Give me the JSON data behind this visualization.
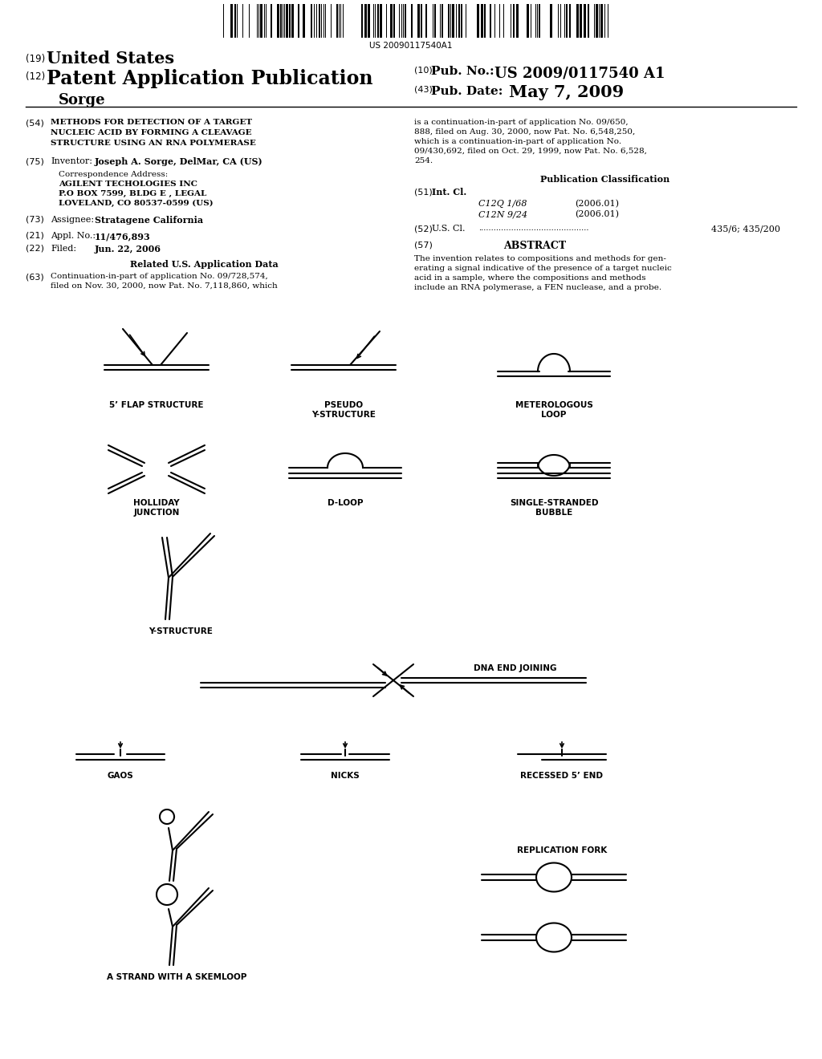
{
  "bg_color": "#ffffff",
  "barcode_text": "US 20090117540A1",
  "header": {
    "num19": "(19)",
    "united_states": "United States",
    "num12": "(12)",
    "patent_app": "Patent Application Publication",
    "sorge": "Sorge",
    "num10": "(10)",
    "pub_no_label": "Pub. No.:",
    "pub_no_val": "US 2009/0117540 A1",
    "num43": "(43)",
    "pub_date_label": "Pub. Date:",
    "pub_date_val": "May 7, 2009"
  },
  "left_col": {
    "n54": "(54)",
    "title": "METHODS FOR DETECTION OF A TARGET\nNUCLEIC ACID BY FORMING A CLEAVAGE\nSTRUCTURE USING AN RNA POLYMERASE",
    "n75": "(75)",
    "inventor_label": "Inventor:",
    "inventor": "Joseph A. Sorge, DelMar, CA (US)",
    "corr_addr": "Correspondence Address:",
    "addr1": "AGILENT TECHOLOGIES INC",
    "addr2": "P.O BOX 7599, BLDG E , LEGAL",
    "addr3": "LOVELAND, CO 80537-0599 (US)",
    "n73": "(73)",
    "assignee_label": "Assignee:",
    "assignee": "Stratagene California",
    "n21": "(21)",
    "appl_label": "Appl. No.:",
    "appl_no": "11/476,893",
    "n22": "(22)",
    "filed_label": "Filed:",
    "filed": "Jun. 22, 2006",
    "rel_data": "Related U.S. Application Data",
    "n63": "(63)",
    "cont_text": "Continuation-in-part of application No. 09/728,574,\nfiled on Nov. 30, 2000, now Pat. No. 7,118,860, which"
  },
  "right_col": {
    "cont_text2": "is a continuation-in-part of application No. 09/650,\n888, filed on Aug. 30, 2000, now Pat. No. 6,548,250,\nwhich is a continuation-in-part of application No.\n09/430,692, filed on Oct. 29, 1999, now Pat. No. 6,528,\n254.",
    "pub_class": "Publication Classification",
    "n51": "(51)",
    "int_cl": "Int. Cl.",
    "c12q": "C12Q 1/68",
    "c12q_year": "(2006.01)",
    "c12n": "C12N 9/24",
    "c12n_year": "(2006.01)",
    "n52": "(52)",
    "us_cl_label": "U.S. Cl.",
    "us_cl_dots": "............................................",
    "us_cl_val": "435/6; 435/200",
    "n57": "(57)",
    "abstract": "ABSTRACT",
    "abstract_text": "The invention relates to compositions and methods for gen-\nerating a signal indicative of the presence of a target nucleic\nacid in a sample, where the compositions and methods\ninclude an RNA polymerase, a FEN nuclease, and a probe."
  },
  "diagram_labels": {
    "flap": "5’ FLAP STRUCTURE",
    "pseudo": "PSEUDO\nY-STRUCTURE",
    "meterologous": "METEROLOGOUS\nLOOP",
    "holliday": "HOLLIDAY\nJUNCTION",
    "dloop": "D-LOOP",
    "single": "SINGLE-STRANDED\nBUBBLE",
    "ystructure": "Y-STRUCTURE",
    "dna_end": "DNA END JOINING",
    "gaos": "GAOS",
    "nicks": "NICKS",
    "recessed": "RECESSED 5’ END",
    "replication": "REPLICATION FORK",
    "skemloop": "A STRAND WITH A SKEMLOOP"
  }
}
